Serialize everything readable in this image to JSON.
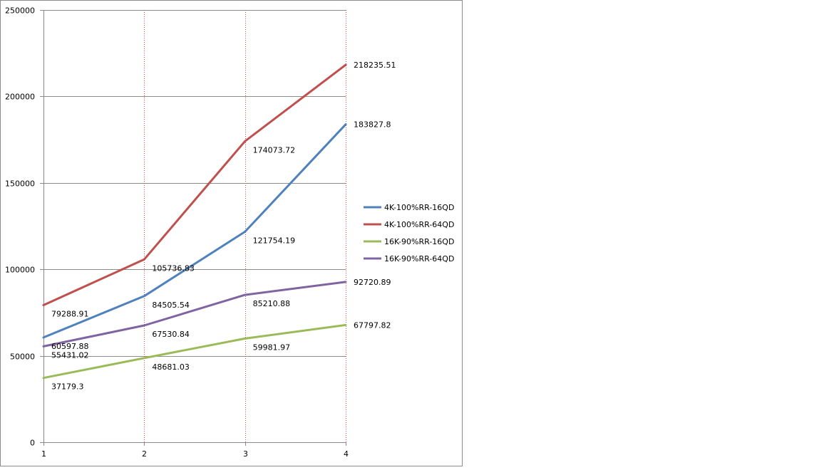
{
  "chart_data": {
    "type": "line",
    "x": [
      1,
      2,
      3,
      4
    ],
    "x_tick_labels": [
      "1",
      "2",
      "3",
      "4"
    ],
    "ylim": [
      0,
      250000
    ],
    "y_ticks": [
      0,
      50000,
      100000,
      150000,
      200000,
      250000
    ],
    "y_tick_labels": [
      "0",
      "50000",
      "100000",
      "150000",
      "200000",
      "250000"
    ],
    "grid": {
      "horizontal": true,
      "vertical": true,
      "vertical_style": "dotted",
      "vertical_color": "#c0504d"
    },
    "legend_position": "right",
    "series": [
      {
        "name": "4K-100%RR-16QD",
        "color": "#4f81bd",
        "values": [
          60597.88,
          84505.54,
          121754.19,
          183827.8
        ],
        "labels": [
          "60597.88",
          "84505.54",
          "121754.19",
          "183827.8"
        ]
      },
      {
        "name": "4K-100%RR-64QD",
        "color": "#c0504d",
        "values": [
          79288.91,
          105736.83,
          174073.72,
          218235.51
        ],
        "labels": [
          "79288.91",
          "105736.83",
          "174073.72",
          "218235.51"
        ]
      },
      {
        "name": "16K-90%RR-16QD",
        "color": "#9bbb59",
        "values": [
          37179.3,
          48681.03,
          59981.97,
          67797.82
        ],
        "labels": [
          "37179.3",
          "48681.03",
          "59981.97",
          "67797.82"
        ]
      },
      {
        "name": "16K-90%RR-64QD",
        "color": "#8064a2",
        "values": [
          55431.02,
          67530.84,
          85210.88,
          92720.89
        ],
        "labels": [
          "55431.02",
          "67530.84",
          "85210.88",
          "92720.89"
        ]
      }
    ]
  }
}
